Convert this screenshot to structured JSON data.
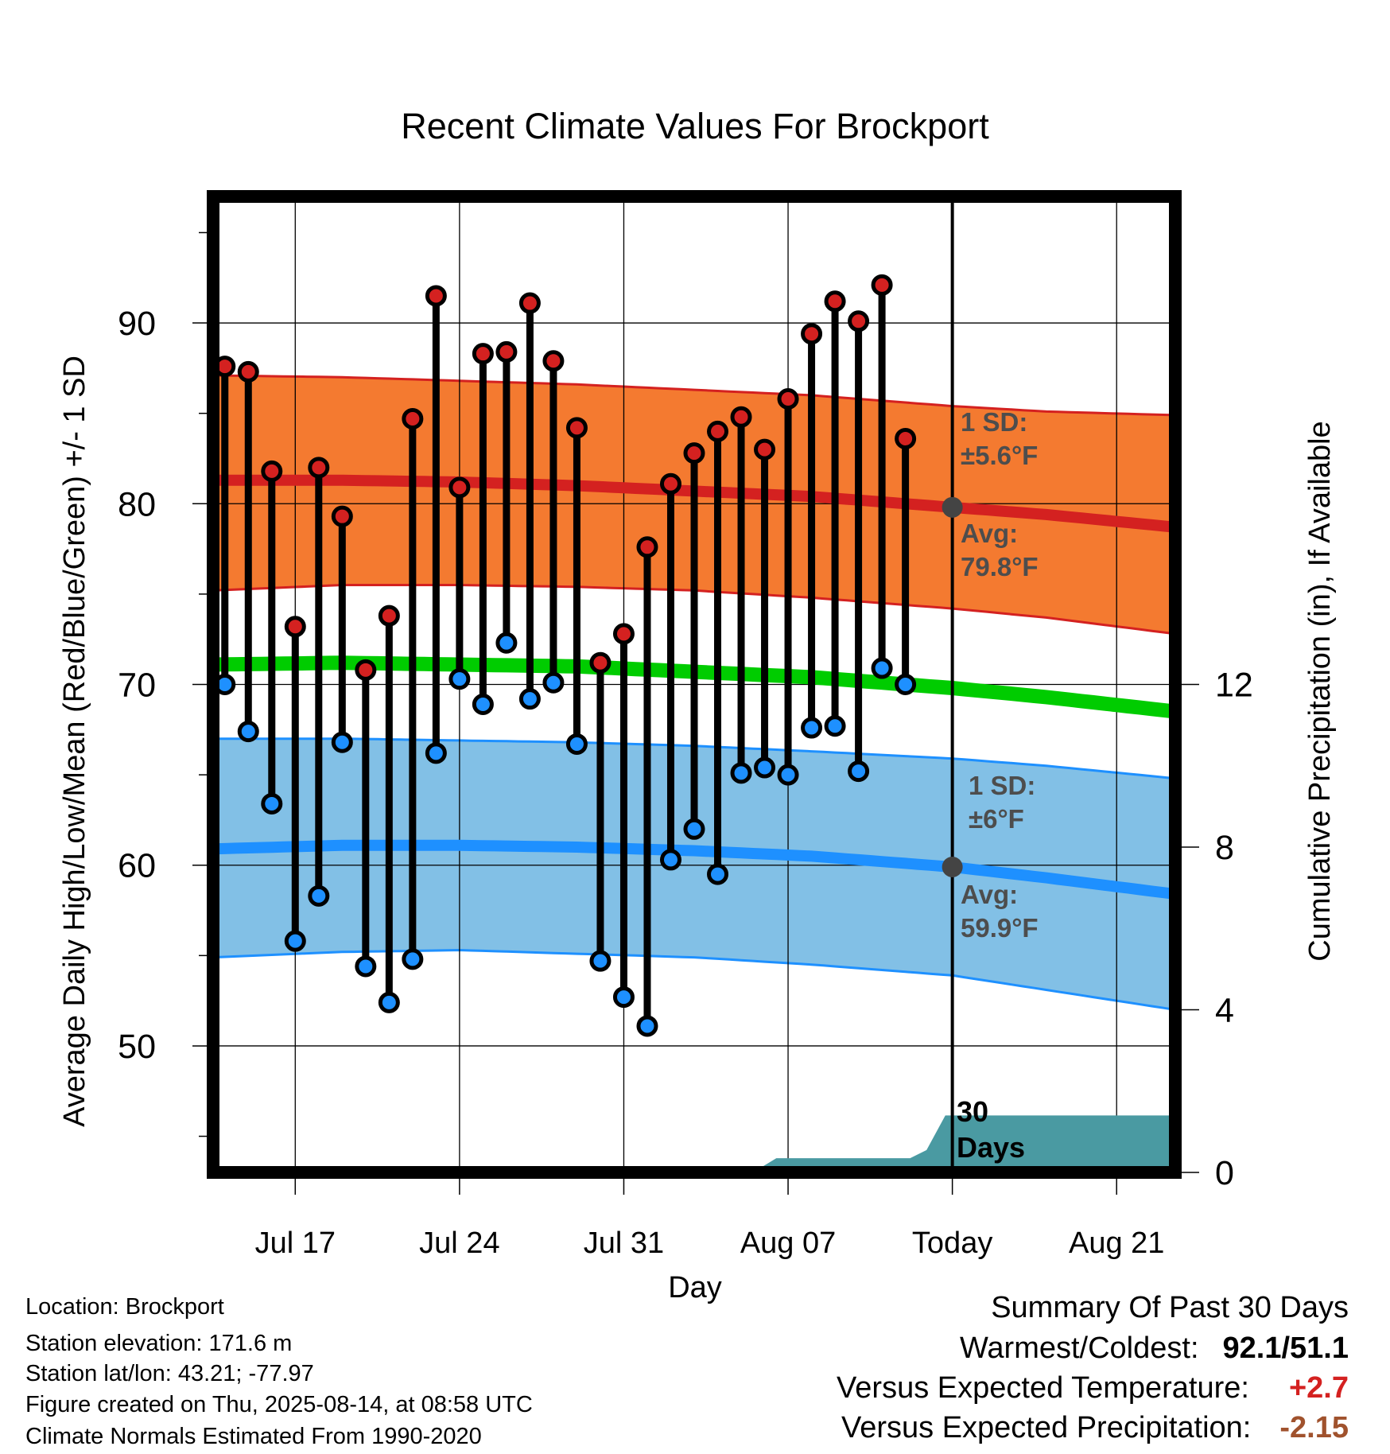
{
  "chart_data": {
    "type": "line",
    "title": "Recent Climate Values For Brockport",
    "xlabel": "Day",
    "ylabel": "Average Daily High/Low/Mean (Red/Blue/Green) +/- 1 SD",
    "y2label": "Cumulative Precipitation (in), If Available",
    "ylim": [
      43,
      97
    ],
    "y_ticks": [
      50,
      60,
      70,
      80,
      90
    ],
    "y2lim": [
      0,
      24
    ],
    "y2_ticks": [
      0,
      4,
      8,
      12
    ],
    "x_range_days_from_jul14": [
      -0.5,
      40.5
    ],
    "x_ticks": [
      {
        "label": "Jul 17",
        "day": 3
      },
      {
        "label": "Jul 24",
        "day": 10
      },
      {
        "label": "Jul 31",
        "day": 17
      },
      {
        "label": "Aug 07",
        "day": 24
      },
      {
        "label": "Today",
        "day": 31
      },
      {
        "label": "Aug 21",
        "day": 38
      }
    ],
    "today_day": 31,
    "daily_high": [
      {
        "date": "Jul 14",
        "value": 87.6
      },
      {
        "date": "Jul 15",
        "value": 87.3
      },
      {
        "date": "Jul 16",
        "value": 81.8
      },
      {
        "date": "Jul 17",
        "value": 73.2
      },
      {
        "date": "Jul 18",
        "value": 82.0
      },
      {
        "date": "Jul 19",
        "value": 79.3
      },
      {
        "date": "Jul 20",
        "value": 70.8
      },
      {
        "date": "Jul 21",
        "value": 73.8
      },
      {
        "date": "Jul 22",
        "value": 84.7
      },
      {
        "date": "Jul 23",
        "value": 91.5
      },
      {
        "date": "Jul 24",
        "value": 80.9
      },
      {
        "date": "Jul 25",
        "value": 88.3
      },
      {
        "date": "Jul 26",
        "value": 88.4
      },
      {
        "date": "Jul 27",
        "value": 91.1
      },
      {
        "date": "Jul 28",
        "value": 87.9
      },
      {
        "date": "Jul 29",
        "value": 84.2
      },
      {
        "date": "Jul 30",
        "value": 71.2
      },
      {
        "date": "Jul 31",
        "value": 72.8
      },
      {
        "date": "Aug 01",
        "value": 77.6
      },
      {
        "date": "Aug 02",
        "value": 81.1
      },
      {
        "date": "Aug 03",
        "value": 82.8
      },
      {
        "date": "Aug 04",
        "value": 84.0
      },
      {
        "date": "Aug 05",
        "value": 84.8
      },
      {
        "date": "Aug 06",
        "value": 83.0
      },
      {
        "date": "Aug 07",
        "value": 85.8
      },
      {
        "date": "Aug 08",
        "value": 89.4
      },
      {
        "date": "Aug 09",
        "value": 91.2
      },
      {
        "date": "Aug 10",
        "value": 90.1
      },
      {
        "date": "Aug 11",
        "value": 92.1
      },
      {
        "date": "Aug 12",
        "value": 83.6
      }
    ],
    "daily_low": [
      {
        "date": "Jul 14",
        "value": 70.0
      },
      {
        "date": "Jul 15",
        "value": 67.4
      },
      {
        "date": "Jul 16",
        "value": 63.4
      },
      {
        "date": "Jul 17",
        "value": 55.8
      },
      {
        "date": "Jul 18",
        "value": 58.3
      },
      {
        "date": "Jul 19",
        "value": 66.8
      },
      {
        "date": "Jul 20",
        "value": 54.4
      },
      {
        "date": "Jul 21",
        "value": 52.4
      },
      {
        "date": "Jul 22",
        "value": 54.8
      },
      {
        "date": "Jul 23",
        "value": 66.2
      },
      {
        "date": "Jul 24",
        "value": 70.3
      },
      {
        "date": "Jul 25",
        "value": 68.9
      },
      {
        "date": "Jul 26",
        "value": 72.3
      },
      {
        "date": "Jul 27",
        "value": 69.2
      },
      {
        "date": "Jul 28",
        "value": 70.1
      },
      {
        "date": "Jul 29",
        "value": 66.7
      },
      {
        "date": "Jul 30",
        "value": 54.7
      },
      {
        "date": "Jul 31",
        "value": 52.7
      },
      {
        "date": "Aug 01",
        "value": 51.1
      },
      {
        "date": "Aug 02",
        "value": 60.3
      },
      {
        "date": "Aug 03",
        "value": 62.0
      },
      {
        "date": "Aug 04",
        "value": 59.5
      },
      {
        "date": "Aug 05",
        "value": 65.1
      },
      {
        "date": "Aug 06",
        "value": 65.4
      },
      {
        "date": "Aug 07",
        "value": 65.0
      },
      {
        "date": "Aug 08",
        "value": 67.6
      },
      {
        "date": "Aug 09",
        "value": 67.7
      },
      {
        "date": "Aug 10",
        "value": 65.2
      },
      {
        "date": "Aug 11",
        "value": 70.9
      },
      {
        "date": "Aug 12",
        "value": 70.0
      }
    ],
    "normal_high": {
      "days": [
        -0.5,
        5,
        10,
        15,
        20,
        25,
        31,
        35,
        40.5
      ],
      "values": [
        81.3,
        81.3,
        81.2,
        81.0,
        80.7,
        80.4,
        79.8,
        79.4,
        78.7
      ]
    },
    "normal_high_band": {
      "days": [
        -0.5,
        5,
        10,
        15,
        20,
        25,
        31,
        35,
        40.5
      ],
      "upper": [
        87.1,
        87.0,
        86.8,
        86.6,
        86.3,
        86.0,
        85.4,
        85.1,
        84.9
      ],
      "lower": [
        75.2,
        75.5,
        75.5,
        75.4,
        75.2,
        74.8,
        74.2,
        73.7,
        72.8
      ]
    },
    "normal_mean": {
      "days": [
        -0.5,
        5,
        10,
        15,
        20,
        25,
        31,
        35,
        40.5
      ],
      "values": [
        71.1,
        71.2,
        71.1,
        71.0,
        70.7,
        70.4,
        69.8,
        69.3,
        68.5
      ]
    },
    "normal_low": {
      "days": [
        -0.5,
        5,
        10,
        15,
        20,
        25,
        31,
        35,
        40.5
      ],
      "values": [
        60.9,
        61.1,
        61.1,
        61.0,
        60.8,
        60.5,
        59.9,
        59.3,
        58.4
      ]
    },
    "normal_low_band": {
      "days": [
        -0.5,
        5,
        10,
        15,
        20,
        25,
        31,
        35,
        40.5
      ],
      "upper": [
        67.0,
        67.0,
        66.9,
        66.8,
        66.6,
        66.3,
        65.9,
        65.5,
        64.8
      ],
      "lower": [
        54.9,
        55.2,
        55.3,
        55.1,
        54.9,
        54.5,
        53.9,
        53.1,
        52.0
      ]
    },
    "cumulative_precipitation": {
      "days": [
        22.5,
        23.5,
        29.2,
        29.9,
        30.7,
        40.5
      ],
      "values": [
        0,
        0.35,
        0.35,
        0.55,
        1.4,
        1.4
      ]
    },
    "annotations": {
      "high_sd_label": "1 SD:",
      "high_sd_value": "±5.6°F",
      "high_avg_label": "Avg:",
      "high_avg_value": "79.8°F",
      "low_sd_label": "1 SD:",
      "low_sd_value": "±6°F",
      "low_avg_label": "Avg:",
      "low_avg_value": "59.9°F",
      "days_label_1": "30",
      "days_label_2": "Days"
    },
    "colors": {
      "high_band": "#f47a30",
      "high_line": "#d42120",
      "low_band": "#82c0e6",
      "low_line": "#1e90ff",
      "mean_line": "#00cc00",
      "high_marker": "#d42120",
      "low_marker": "#1e90ff",
      "precip_fill": "#4a9aa2",
      "today_marker": "#444444",
      "annotation_text": "#4d4d4d"
    }
  },
  "footer": {
    "location": "Location: Brockport",
    "elevation": "Station elevation: 171.6 m",
    "latlon": "Station lat/lon: 43.21; -77.97",
    "created": "Figure created on Thu, 2025-08-14, at 08:58 UTC",
    "normals": "Climate Normals Estimated From 1990-2020"
  },
  "summary": {
    "title": "Summary Of Past 30 Days",
    "warmest_label": "Warmest/Coldest:",
    "warmest_value": "92.1/51.1",
    "temp_label": "Versus Expected Temperature:",
    "temp_value": "+2.7",
    "temp_color": "#d42120",
    "precip_label": "Versus Expected Precipitation:",
    "precip_value": "-2.15",
    "precip_color": "#a0522d"
  }
}
